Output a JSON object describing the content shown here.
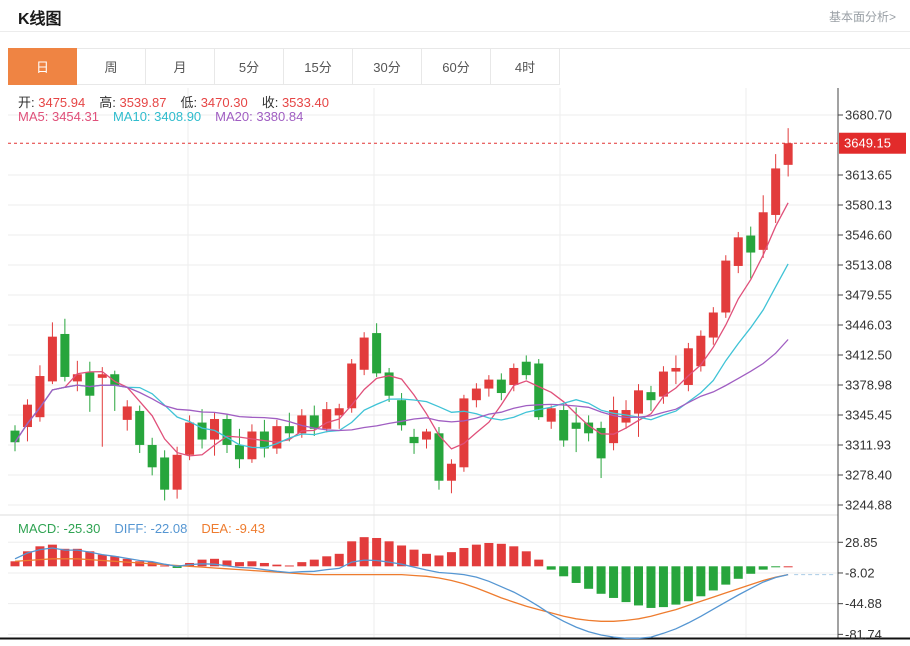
{
  "header": {
    "title": "K线图",
    "link": "基本面分析>"
  },
  "tabs": [
    {
      "label": "日",
      "active": true
    },
    {
      "label": "周",
      "active": false
    },
    {
      "label": "月",
      "active": false
    },
    {
      "label": "5分",
      "active": false
    },
    {
      "label": "15分",
      "active": false
    },
    {
      "label": "30分",
      "active": false
    },
    {
      "label": "60分",
      "active": false
    },
    {
      "label": "4时",
      "active": false
    }
  ],
  "ohlc_info": [
    {
      "label": "开:",
      "value": "3475.94"
    },
    {
      "label": "高:",
      "value": "3539.87"
    },
    {
      "label": "低:",
      "value": "3470.30"
    },
    {
      "label": "收:",
      "value": "3533.40"
    }
  ],
  "ma_info": [
    {
      "label": "MA5:",
      "value": "3454.31",
      "color": "#e0507a"
    },
    {
      "label": "MA10:",
      "value": "3408.90",
      "color": "#2fbccd"
    },
    {
      "label": "MA20:",
      "value": "3380.84",
      "color": "#a05ec2"
    }
  ],
  "macd_info": [
    {
      "label": "MACD:",
      "value": "-25.30",
      "color": "#2fa352"
    },
    {
      "label": "DIFF:",
      "value": "-22.08",
      "color": "#5596d2"
    },
    {
      "label": "DEA:",
      "value": "-9.43",
      "color": "#ee7c2f"
    }
  ],
  "colors": {
    "up": "#e23c3c",
    "down": "#27a53c",
    "ma5": "#e0507a",
    "ma10": "#3fc3d6",
    "ma20": "#a05ec2",
    "diff": "#5596d2",
    "dea": "#ee7c2f",
    "ohlc_value": "#e64545",
    "price_tag_bg": "#e22b2b",
    "price_line": "#e23434",
    "grid": "#ededed",
    "axis": "#444444",
    "tab_active": "#ef8443"
  },
  "chart_data": {
    "type": "candlestick+macd",
    "main": {
      "title": "K线图 daily candles with MA5/MA10/MA20",
      "price_max": 3680.7,
      "price_min": 3244.88,
      "y_ticks": [
        3680.7,
        3613.65,
        3580.13,
        3546.6,
        3513.08,
        3479.55,
        3446.03,
        3412.5,
        3378.98,
        3345.45,
        3311.93,
        3278.4,
        3244.88
      ],
      "current_price": 3649.15,
      "grid": true,
      "legend_position": "top-left-overlay",
      "candles_ohlc": [
        [
          3328,
          3334,
          3305,
          3315
        ],
        [
          3332,
          3363,
          3316,
          3357
        ],
        [
          3343,
          3401,
          3338,
          3389
        ],
        [
          3383,
          3449,
          3380,
          3433
        ],
        [
          3436,
          3453,
          3383,
          3388
        ],
        [
          3383,
          3406,
          3372,
          3391
        ],
        [
          3393,
          3405,
          3349,
          3367
        ],
        [
          3387,
          3399,
          3310,
          3391
        ],
        [
          3391,
          3395,
          3350,
          3378
        ],
        [
          3340,
          3362,
          3328,
          3355
        ],
        [
          3350,
          3356,
          3303,
          3312
        ],
        [
          3312,
          3320,
          3278,
          3287
        ],
        [
          3298,
          3306,
          3250,
          3262
        ],
        [
          3262,
          3310,
          3252,
          3301
        ],
        [
          3301,
          3345,
          3295,
          3337
        ],
        [
          3337,
          3352,
          3308,
          3318
        ],
        [
          3318,
          3348,
          3300,
          3341
        ],
        [
          3341,
          3346,
          3303,
          3312
        ],
        [
          3312,
          3330,
          3286,
          3296
        ],
        [
          3296,
          3335,
          3292,
          3327
        ],
        [
          3327,
          3340,
          3298,
          3308
        ],
        [
          3308,
          3340,
          3302,
          3333
        ],
        [
          3333,
          3348,
          3316,
          3325
        ],
        [
          3325,
          3352,
          3320,
          3345
        ],
        [
          3345,
          3356,
          3322,
          3330
        ],
        [
          3330,
          3360,
          3326,
          3352
        ],
        [
          3345,
          3358,
          3330,
          3353
        ],
        [
          3353,
          3408,
          3348,
          3403
        ],
        [
          3396,
          3438,
          3390,
          3432
        ],
        [
          3437,
          3448,
          3388,
          3392
        ],
        [
          3393,
          3398,
          3360,
          3367
        ],
        [
          3362,
          3370,
          3328,
          3334
        ],
        [
          3321,
          3330,
          3302,
          3314
        ],
        [
          3318,
          3330,
          3308,
          3327
        ],
        [
          3325,
          3332,
          3262,
          3272
        ],
        [
          3272,
          3296,
          3258,
          3291
        ],
        [
          3287,
          3368,
          3282,
          3364
        ],
        [
          3362,
          3381,
          3354,
          3375
        ],
        [
          3375,
          3390,
          3366,
          3385
        ],
        [
          3385,
          3392,
          3362,
          3370
        ],
        [
          3379,
          3403,
          3372,
          3398
        ],
        [
          3405,
          3412,
          3385,
          3390
        ],
        [
          3403,
          3408,
          3340,
          3343
        ],
        [
          3338,
          3356,
          3330,
          3353
        ],
        [
          3351,
          3358,
          3310,
          3317
        ],
        [
          3337,
          3354,
          3304,
          3330
        ],
        [
          3337,
          3345,
          3316,
          3325
        ],
        [
          3331,
          3338,
          3275,
          3297
        ],
        [
          3314,
          3366,
          3306,
          3351
        ],
        [
          3337,
          3362,
          3330,
          3351
        ],
        [
          3347,
          3380,
          3321,
          3373
        ],
        [
          3371,
          3378,
          3350,
          3362
        ],
        [
          3366,
          3400,
          3358,
          3394
        ],
        [
          3394,
          3412,
          3380,
          3398
        ],
        [
          3379,
          3426,
          3372,
          3420
        ],
        [
          3400,
          3440,
          3394,
          3434
        ],
        [
          3432,
          3466,
          3424,
          3460
        ],
        [
          3460,
          3524,
          3454,
          3518
        ],
        [
          3512,
          3550,
          3504,
          3544
        ],
        [
          3546,
          3556,
          3498,
          3527
        ],
        [
          3530,
          3591,
          3521,
          3572
        ],
        [
          3569,
          3637,
          3560,
          3621
        ],
        [
          3625,
          3666,
          3612,
          3649.15
        ]
      ],
      "ma_windows": [
        5,
        10,
        20
      ]
    },
    "macd": {
      "y_ticks": [
        28.85,
        -8.02,
        -44.88,
        -81.74
      ],
      "hist": [
        6,
        18,
        24,
        26,
        21,
        21,
        18,
        14,
        12,
        9,
        6,
        5,
        1,
        -2,
        4,
        8,
        9,
        7,
        5,
        6,
        4,
        2,
        1,
        5,
        8,
        12,
        15,
        30,
        35,
        34,
        30,
        25,
        20,
        15,
        13,
        17,
        22,
        26,
        28,
        27,
        24,
        18,
        8,
        -4,
        -12,
        -20,
        -27,
        -33,
        -38,
        -43,
        -47,
        -50,
        -49,
        -46,
        -42,
        -36,
        -29,
        -22,
        -15,
        -9,
        -4,
        -1,
        0
      ],
      "diff": [
        9,
        16,
        20,
        22,
        19.5,
        19.5,
        17,
        14,
        12,
        9.5,
        7,
        5.5,
        2.5,
        0,
        2,
        3,
        2.5,
        0.5,
        -1.5,
        -2,
        -4,
        -6,
        -7.5,
        -6.5,
        -6,
        -4,
        -2.5,
        5,
        7.5,
        7,
        5,
        2.5,
        -1,
        -4.5,
        -7.5,
        -8.5,
        -10,
        -13,
        -18,
        -24.5,
        -31,
        -39,
        -48,
        -58,
        -66,
        -73,
        -78.5,
        -82.5,
        -85,
        -86.5,
        -86.5,
        -85,
        -80.5,
        -75,
        -68,
        -60,
        -51.5,
        -43,
        -34.5,
        -26.5,
        -19,
        -13.5,
        -10
      ],
      "dea": [
        6,
        7,
        8,
        9,
        9,
        9,
        8,
        7,
        6,
        5,
        4,
        3,
        2,
        1,
        0,
        -1,
        -2,
        -3,
        -4,
        -5,
        -6,
        -7,
        -8,
        -9,
        -10,
        -10,
        -10,
        -10,
        -10,
        -10,
        -10,
        -10,
        -11,
        -12,
        -14,
        -17,
        -21,
        -26,
        -32,
        -38,
        -43,
        -48,
        -52,
        -56,
        -60,
        -63,
        -65,
        -66,
        -66,
        -65,
        -63,
        -60,
        -56,
        -52,
        -47,
        -42,
        -37,
        -32,
        -27,
        -22,
        -17,
        -13,
        -10
      ]
    }
  }
}
